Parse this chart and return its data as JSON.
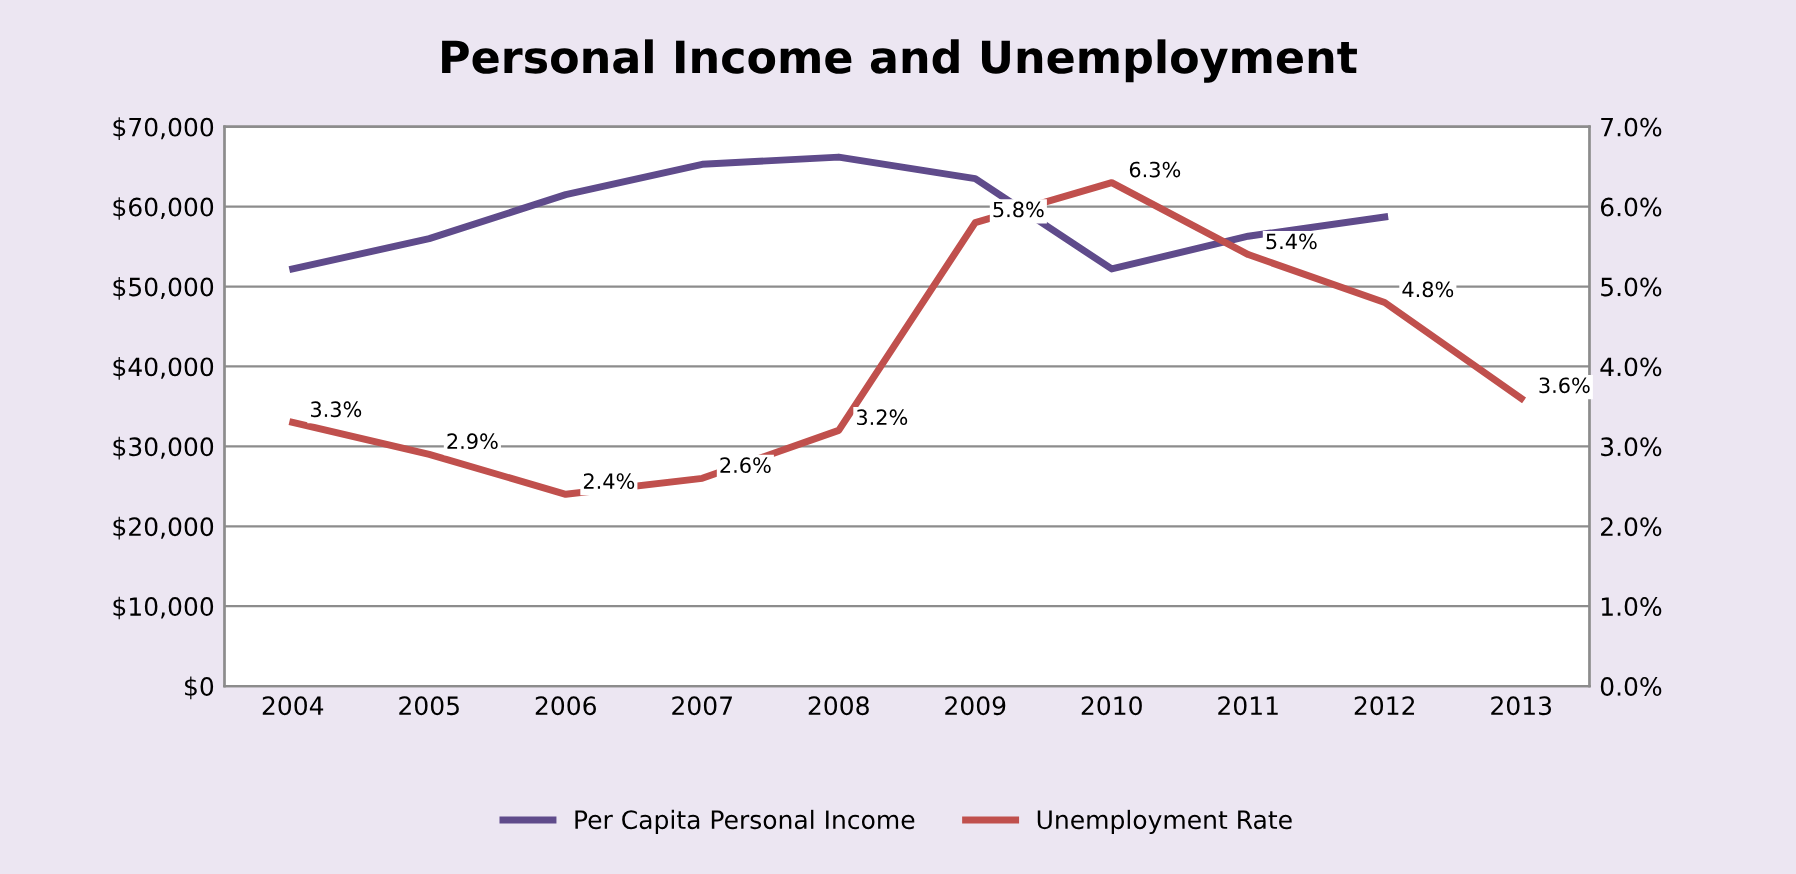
{
  "chart_data": {
    "type": "line",
    "title": "Personal Income and Unemployment",
    "categories": [
      "2004",
      "2005",
      "2006",
      "2007",
      "2008",
      "2009",
      "2010",
      "2011",
      "2012",
      "2013"
    ],
    "series": [
      {
        "name": "Per Capita Personal Income",
        "color": "#5f4b8b",
        "values": [
          52200,
          56000,
          61500,
          65300,
          66200,
          63500,
          52200,
          56300,
          58700,
          null
        ]
      },
      {
        "name": "Unemployment Rate",
        "color": "#c0504d",
        "axis": "y2",
        "values": [
          3.3,
          2.9,
          2.4,
          2.6,
          3.2,
          5.8,
          6.3,
          5.4,
          4.8,
          3.6
        ],
        "value_labels": [
          "3.3%",
          "2.9%",
          "2.4%",
          "2.6%",
          "3.2%",
          "5.8%",
          "6.3%",
          "5.4%",
          "4.8%",
          "3.6%"
        ]
      }
    ],
    "ylim": [
      0,
      70000
    ],
    "yticks": [
      {
        "value": 0,
        "label": "$0"
      },
      {
        "value": 10000,
        "label": "$10,000"
      },
      {
        "value": 20000,
        "label": "$20,000"
      },
      {
        "value": 30000,
        "label": "$30,000"
      },
      {
        "value": 40000,
        "label": "$40,000"
      },
      {
        "value": 50000,
        "label": "$50,000"
      },
      {
        "value": 60000,
        "label": "$60,000"
      },
      {
        "value": 70000,
        "label": "$70,000"
      }
    ],
    "y2lim": [
      0,
      7
    ],
    "y2ticks": [
      {
        "value": 0,
        "label": "0.0%"
      },
      {
        "value": 1,
        "label": "1.0%"
      },
      {
        "value": 2,
        "label": "2.0%"
      },
      {
        "value": 3,
        "label": "3.0%"
      },
      {
        "value": 4,
        "label": "4.0%"
      },
      {
        "value": 5,
        "label": "5.0%"
      },
      {
        "value": 6,
        "label": "6.0%"
      },
      {
        "value": 7,
        "label": "7.0%"
      }
    ],
    "grid": "y",
    "legend": "bottom",
    "marker": "none",
    "line_style": "solid"
  }
}
